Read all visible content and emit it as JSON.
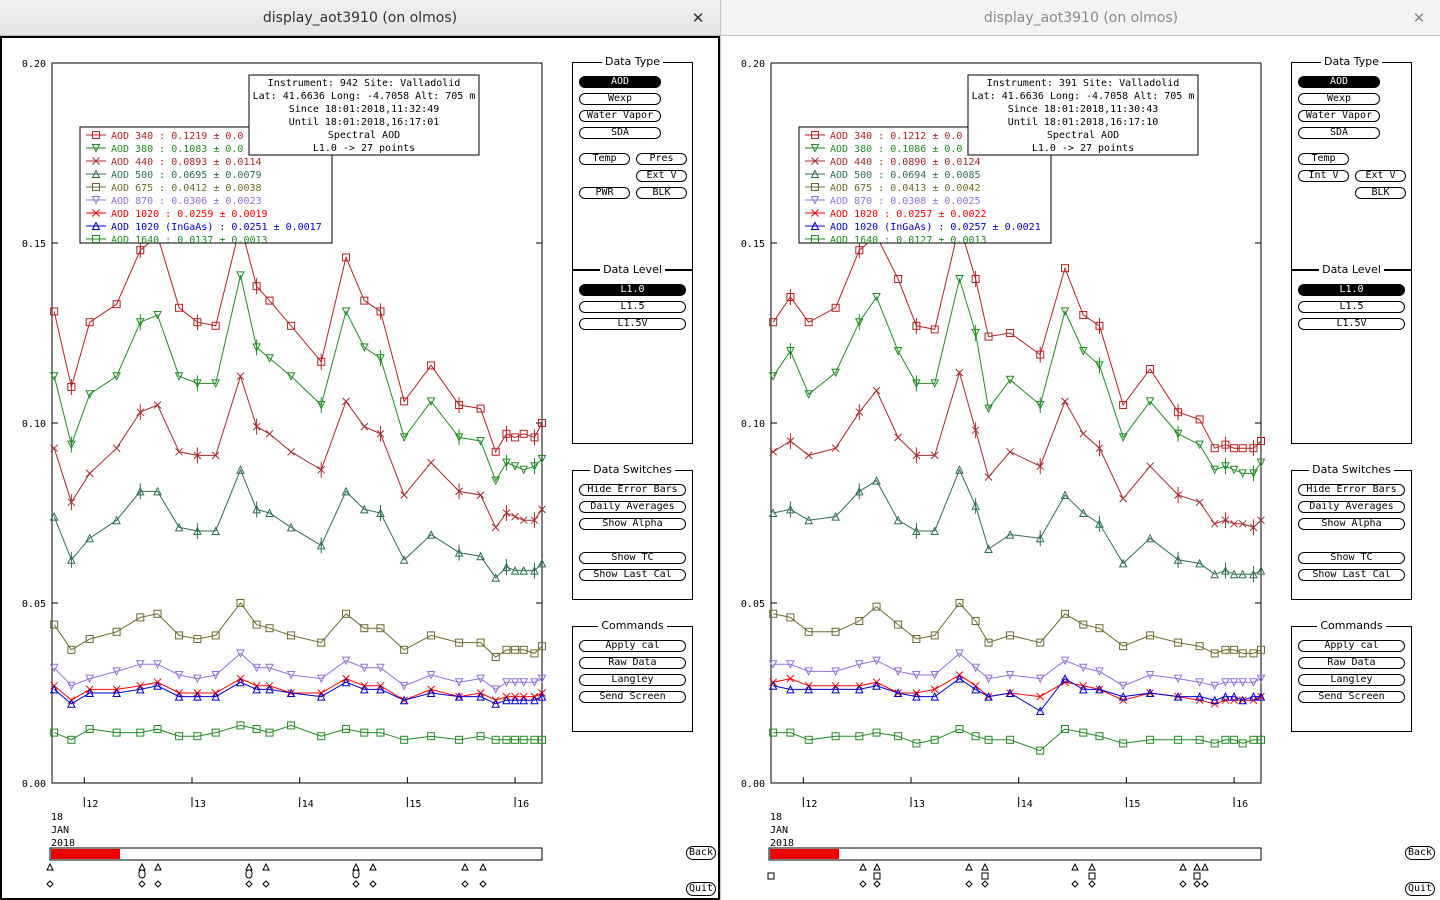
{
  "windows": [
    {
      "title": "display_aot3910 (on olmos)",
      "close_glyph": "✕",
      "info": [
        "Instrument: 942 Site: Valladolid",
        "Lat: 41.6636 Long: -4.7058 Alt: 705 m",
        "Since 18:01:2018,11:32:49",
        "Until 18:01:2018,16:17:01",
        "Spectral AOD",
        "L1.0 -> 27 points"
      ],
      "legend": [
        {
          "label": "AOD 340   : 0.1219 ± 0.0",
          "color": "#b22222",
          "marker": "square"
        },
        {
          "label": "AOD 380   : 0.1083 ± 0.0",
          "color": "#228b22",
          "marker": "tri-down"
        },
        {
          "label": "AOD 440   : 0.0893 ± 0.0114",
          "color": "#a52a2a",
          "marker": "x"
        },
        {
          "label": "AOD 500   : 0.0695 ± 0.0079",
          "color": "#2f6f4f",
          "marker": "tri-up"
        },
        {
          "label": "AOD 675   : 0.0412 ± 0.0038",
          "color": "#6b6b2f",
          "marker": "square"
        },
        {
          "label": "AOD 870   : 0.0306 ± 0.0023",
          "color": "#9370db",
          "marker": "tri-down"
        },
        {
          "label": "AOD 1020  : 0.0259 ± 0.0019",
          "color": "#ff0000",
          "marker": "x"
        },
        {
          "label": "AOD 1020 (InGaAs)  : 0.0251 ± 0.0017",
          "color": "#0000cd",
          "marker": "tri-up"
        },
        {
          "label": "AOD 1640  : 0.0137 ± 0.0013",
          "color": "#228b22",
          "marker": "square"
        }
      ],
      "data_type_buttons": [
        "AOD",
        "Wexp",
        "Water Vapor",
        "SDA",
        "Temp",
        "Pres",
        "Ext V",
        "PWR",
        "BLK"
      ],
      "bottom_markers": "triangles-diamonds"
    },
    {
      "title": "display_aot3910 (on olmos)",
      "close_glyph": "✕",
      "info": [
        "Instrument: 391 Site: Valladolid",
        "Lat: 41.6636 Long: -4.7058 Alt: 705 m",
        "Since 18:01:2018,11:30:43",
        "Until 18:01:2018,16:17:10",
        "Spectral AOD",
        "L1.0 -> 27 points"
      ],
      "legend": [
        {
          "label": "AOD 340   : 0.1212 ± 0.0",
          "color": "#b22222",
          "marker": "square"
        },
        {
          "label": "AOD 380   : 0.1086 ± 0.0",
          "color": "#228b22",
          "marker": "tri-down"
        },
        {
          "label": "AOD 440   : 0.0890 ± 0.0124",
          "color": "#a52a2a",
          "marker": "x"
        },
        {
          "label": "AOD 500   : 0.0694 ± 0.0085",
          "color": "#2f6f4f",
          "marker": "tri-up"
        },
        {
          "label": "AOD 675   : 0.0413 ± 0.0042",
          "color": "#6b6b2f",
          "marker": "square"
        },
        {
          "label": "AOD 870   : 0.0308 ± 0.0025",
          "color": "#9370db",
          "marker": "tri-down"
        },
        {
          "label": "AOD 1020  : 0.0257 ± 0.0022",
          "color": "#ff0000",
          "marker": "x"
        },
        {
          "label": "AOD 1020 (InGaAs)  : 0.0257 ± 0.0021",
          "color": "#0000cd",
          "marker": "tri-up"
        },
        {
          "label": "AOD 1640  : 0.0127 ± 0.0013",
          "color": "#228b22",
          "marker": "square"
        }
      ],
      "data_type_buttons": [
        "AOD",
        "Wexp",
        "Water Vapor",
        "SDA",
        "Temp",
        "Int V",
        "Ext V",
        "BLK"
      ],
      "bottom_markers": "squares-triangles"
    }
  ],
  "panels": {
    "data_type": "Data Type",
    "data_level": {
      "title": "Data Level",
      "buttons": [
        "L1.0",
        "L1.5",
        "L1.5V"
      ]
    },
    "data_switches": {
      "title": "Data Switches",
      "buttons": [
        "Hide Error Bars",
        "Daily Averages",
        "Show Alpha",
        "Show TC",
        "Show Last Cal"
      ]
    },
    "commands": {
      "title": "Commands",
      "buttons": [
        "Apply cal",
        "Raw Data",
        "Langley",
        "Send Screen"
      ]
    }
  },
  "nav": {
    "back": "Back",
    "quit": "Quit"
  },
  "date_label": [
    "18",
    "JAN",
    "2018"
  ],
  "chart_data": {
    "type": "line",
    "ylim": [
      0,
      0.2
    ],
    "yticks": [
      "0.00",
      "0.05",
      "0.10",
      "0.15",
      "0.20"
    ],
    "xlim": [
      11.7,
      16.25
    ],
    "xticks": [
      {
        "x": 12,
        "label": "12"
      },
      {
        "x": 13,
        "label": "13"
      },
      {
        "x": 14,
        "label": "14"
      },
      {
        "x": 15,
        "label": "15"
      },
      {
        "x": 16,
        "label": "16"
      }
    ],
    "xlabel": "",
    "ylabel": "",
    "x": [
      11.72,
      11.88,
      12.05,
      12.3,
      12.52,
      12.68,
      12.88,
      13.05,
      13.22,
      13.45,
      13.6,
      13.72,
      13.92,
      14.2,
      14.43,
      14.6,
      14.75,
      14.97,
      15.22,
      15.48,
      15.68,
      15.82,
      15.92,
      16.0,
      16.08,
      16.18,
      16.25
    ],
    "panels": [
      {
        "series": [
          {
            "name": "AOD 340",
            "values": [
              0.131,
              0.11,
              0.128,
              0.133,
              0.148,
              0.152,
              0.132,
              0.128,
              0.127,
              0.155,
              0.138,
              0.134,
              0.127,
              0.117,
              0.146,
              0.134,
              0.131,
              0.106,
              0.116,
              0.105,
              0.104,
              0.092,
              0.097,
              0.096,
              0.097,
              0.096,
              0.1
            ]
          },
          {
            "name": "AOD 380",
            "values": [
              0.113,
              0.094,
              0.108,
              0.113,
              0.128,
              0.13,
              0.113,
              0.111,
              0.111,
              0.141,
              0.121,
              0.118,
              0.113,
              0.105,
              0.131,
              0.121,
              0.118,
              0.096,
              0.106,
              0.096,
              0.095,
              0.084,
              0.089,
              0.088,
              0.087,
              0.088,
              0.09
            ]
          },
          {
            "name": "AOD 440",
            "values": [
              0.093,
              0.078,
              0.086,
              0.093,
              0.103,
              0.105,
              0.092,
              0.091,
              0.091,
              0.113,
              0.099,
              0.097,
              0.092,
              0.087,
              0.106,
              0.099,
              0.097,
              0.08,
              0.089,
              0.081,
              0.08,
              0.071,
              0.075,
              0.074,
              0.073,
              0.073,
              0.076
            ]
          },
          {
            "name": "AOD 500",
            "values": [
              0.074,
              0.062,
              0.068,
              0.073,
              0.081,
              0.081,
              0.071,
              0.07,
              0.07,
              0.087,
              0.076,
              0.075,
              0.071,
              0.066,
              0.081,
              0.076,
              0.075,
              0.062,
              0.069,
              0.064,
              0.063,
              0.057,
              0.06,
              0.059,
              0.059,
              0.059,
              0.061
            ]
          },
          {
            "name": "AOD 675",
            "values": [
              0.044,
              0.037,
              0.04,
              0.042,
              0.046,
              0.047,
              0.041,
              0.04,
              0.041,
              0.05,
              0.044,
              0.043,
              0.041,
              0.039,
              0.047,
              0.043,
              0.043,
              0.037,
              0.041,
              0.039,
              0.039,
              0.035,
              0.037,
              0.037,
              0.037,
              0.036,
              0.038
            ]
          },
          {
            "name": "AOD 870",
            "values": [
              0.032,
              0.027,
              0.029,
              0.031,
              0.033,
              0.033,
              0.03,
              0.029,
              0.03,
              0.036,
              0.032,
              0.032,
              0.03,
              0.029,
              0.034,
              0.032,
              0.032,
              0.027,
              0.03,
              0.028,
              0.029,
              0.026,
              0.028,
              0.028,
              0.028,
              0.028,
              0.029
            ]
          },
          {
            "name": "AOD 1020",
            "values": [
              0.027,
              0.023,
              0.026,
              0.026,
              0.027,
              0.028,
              0.025,
              0.025,
              0.025,
              0.029,
              0.027,
              0.027,
              0.025,
              0.025,
              0.029,
              0.027,
              0.027,
              0.023,
              0.026,
              0.024,
              0.025,
              0.023,
              0.024,
              0.024,
              0.024,
              0.024,
              0.025
            ]
          },
          {
            "name": "AOD 1020 (InGaAs)",
            "values": [
              0.026,
              0.022,
              0.025,
              0.025,
              0.026,
              0.027,
              0.024,
              0.024,
              0.024,
              0.028,
              0.026,
              0.026,
              0.025,
              0.024,
              0.028,
              0.026,
              0.026,
              0.023,
              0.025,
              0.024,
              0.024,
              0.022,
              0.023,
              0.023,
              0.023,
              0.023,
              0.024
            ]
          },
          {
            "name": "AOD 1640",
            "values": [
              0.014,
              0.012,
              0.015,
              0.014,
              0.014,
              0.015,
              0.013,
              0.013,
              0.014,
              0.016,
              0.015,
              0.014,
              0.016,
              0.013,
              0.015,
              0.014,
              0.014,
              0.012,
              0.013,
              0.012,
              0.013,
              0.012,
              0.012,
              0.012,
              0.012,
              0.012,
              0.012
            ]
          }
        ]
      },
      {
        "series": [
          {
            "name": "AOD 340",
            "values": [
              0.128,
              0.135,
              0.128,
              0.132,
              0.148,
              0.152,
              0.14,
              0.127,
              0.126,
              0.155,
              0.14,
              0.124,
              0.125,
              0.119,
              0.143,
              0.13,
              0.127,
              0.105,
              0.115,
              0.103,
              0.101,
              0.093,
              0.094,
              0.093,
              0.093,
              0.093,
              0.095
            ]
          },
          {
            "name": "AOD 380",
            "values": [
              0.113,
              0.12,
              0.108,
              0.114,
              0.128,
              0.135,
              0.12,
              0.111,
              0.111,
              0.14,
              0.125,
              0.104,
              0.112,
              0.105,
              0.131,
              0.12,
              0.116,
              0.096,
              0.106,
              0.097,
              0.094,
              0.087,
              0.088,
              0.087,
              0.086,
              0.086,
              0.089
            ]
          },
          {
            "name": "AOD 440",
            "values": [
              0.092,
              0.095,
              0.091,
              0.093,
              0.103,
              0.109,
              0.096,
              0.091,
              0.091,
              0.114,
              0.098,
              0.085,
              0.092,
              0.088,
              0.106,
              0.097,
              0.093,
              0.079,
              0.088,
              0.08,
              0.078,
              0.072,
              0.073,
              0.072,
              0.072,
              0.071,
              0.073
            ]
          },
          {
            "name": "AOD 500",
            "values": [
              0.075,
              0.076,
              0.073,
              0.074,
              0.081,
              0.084,
              0.073,
              0.07,
              0.07,
              0.087,
              0.077,
              0.065,
              0.069,
              0.068,
              0.08,
              0.075,
              0.072,
              0.061,
              0.068,
              0.062,
              0.061,
              0.058,
              0.059,
              0.058,
              0.058,
              0.058,
              0.059
            ]
          },
          {
            "name": "AOD 675",
            "values": [
              0.047,
              0.046,
              0.042,
              0.042,
              0.045,
              0.049,
              0.044,
              0.04,
              0.041,
              0.05,
              0.045,
              0.039,
              0.041,
              0.039,
              0.047,
              0.044,
              0.043,
              0.038,
              0.041,
              0.039,
              0.038,
              0.036,
              0.037,
              0.037,
              0.036,
              0.036,
              0.037
            ]
          },
          {
            "name": "AOD 870",
            "values": [
              0.033,
              0.033,
              0.031,
              0.031,
              0.033,
              0.034,
              0.031,
              0.03,
              0.03,
              0.036,
              0.032,
              0.029,
              0.03,
              0.029,
              0.034,
              0.032,
              0.031,
              0.027,
              0.03,
              0.029,
              0.028,
              0.027,
              0.028,
              0.028,
              0.028,
              0.028,
              0.029
            ]
          },
          {
            "name": "AOD 1020",
            "values": [
              0.028,
              0.029,
              0.027,
              0.027,
              0.027,
              0.028,
              0.025,
              0.025,
              0.026,
              0.03,
              0.027,
              0.024,
              0.025,
              0.024,
              0.028,
              0.027,
              0.026,
              0.023,
              0.025,
              0.024,
              0.023,
              0.022,
              0.023,
              0.023,
              0.023,
              0.023,
              0.024
            ]
          },
          {
            "name": "AOD 1020 (InGaAs)",
            "values": [
              0.027,
              0.026,
              0.026,
              0.026,
              0.026,
              0.027,
              0.025,
              0.024,
              0.024,
              0.029,
              0.026,
              0.024,
              0.025,
              0.02,
              0.029,
              0.026,
              0.026,
              0.024,
              0.025,
              0.024,
              0.024,
              0.023,
              0.024,
              0.024,
              0.023,
              0.024,
              0.024
            ]
          },
          {
            "name": "AOD 1640",
            "values": [
              0.014,
              0.014,
              0.012,
              0.013,
              0.013,
              0.014,
              0.013,
              0.011,
              0.012,
              0.015,
              0.013,
              0.012,
              0.012,
              0.009,
              0.015,
              0.014,
              0.013,
              0.011,
              0.012,
              0.012,
              0.012,
              0.011,
              0.012,
              0.012,
              0.011,
              0.012,
              0.012
            ]
          }
        ]
      }
    ]
  }
}
